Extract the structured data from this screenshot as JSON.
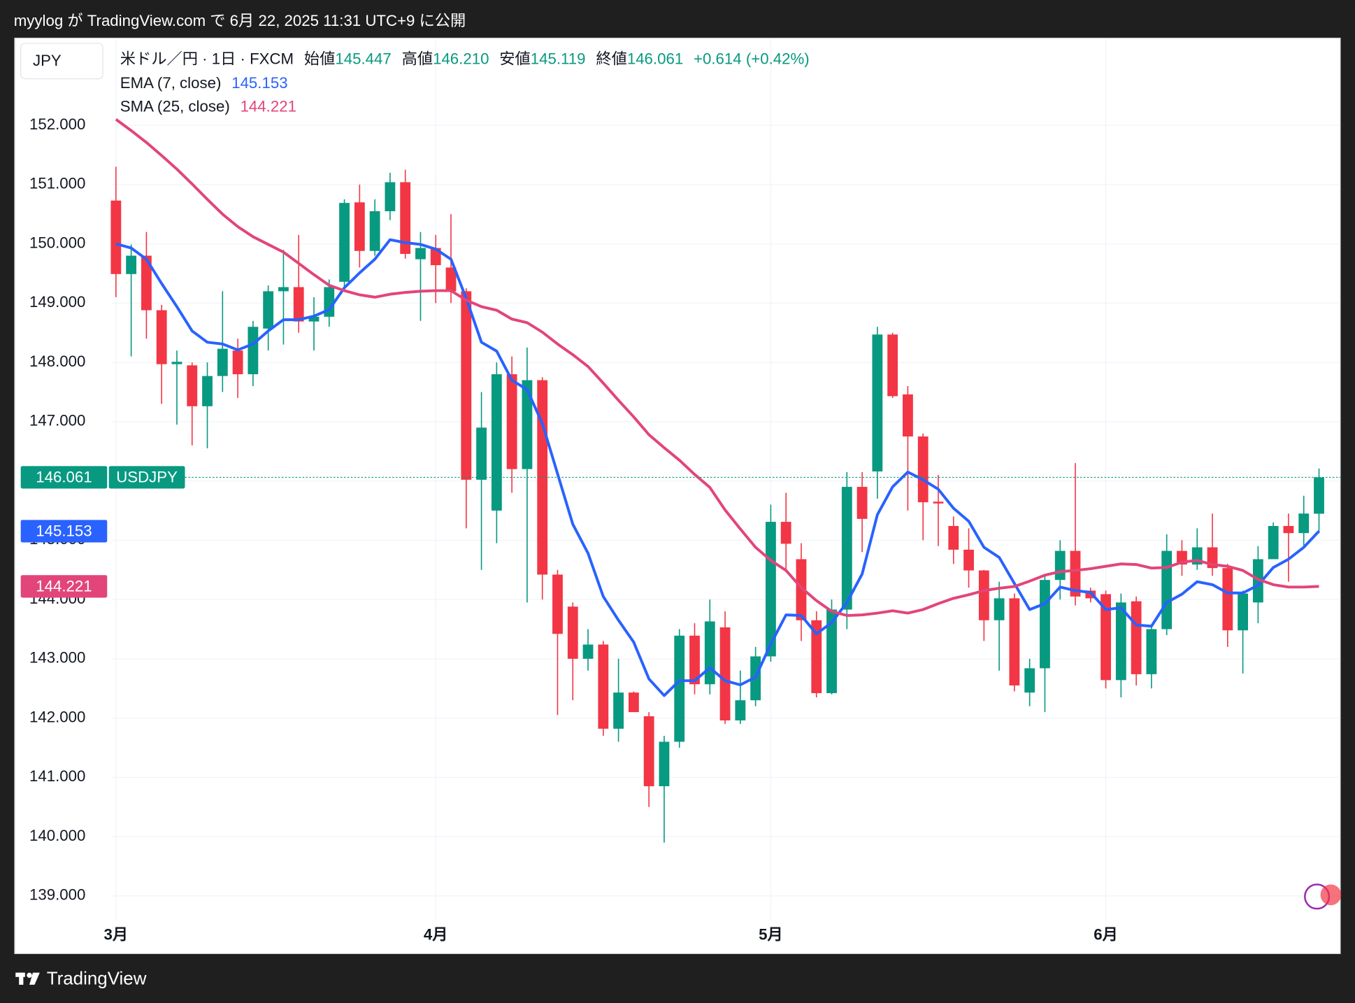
{
  "top_bar": {
    "text": "myylog が TradingView.com で 6月 22, 2025 11:31 UTC+9 に公開"
  },
  "footer": {
    "brand": "TradingView"
  },
  "chart_data": {
    "type": "candlestick",
    "currency": "JPY",
    "title": "米ドル／円 · 1日 · FXCM",
    "ohlc_legend": [
      {
        "label": "始値",
        "value": "145.447"
      },
      {
        "label": "高値",
        "value": "146.210"
      },
      {
        "label": "安値",
        "value": "145.119"
      },
      {
        "label": "終値",
        "value": "146.061"
      }
    ],
    "change": "+0.614 (+0.42%)",
    "symbol": "USDJPY",
    "last_price_label": "146.061",
    "up_color": "#089981",
    "down_color": "#f23645",
    "open": [
      150.73,
      149.49,
      149.8,
      148.88,
      147.97,
      147.95,
      147.26,
      147.77,
      148.2,
      147.8,
      148.57,
      149.2,
      149.27,
      148.69,
      148.77,
      149.36,
      150.7,
      149.88,
      150.55,
      151.04,
      149.74,
      149.93,
      149.6,
      149.2,
      146.02,
      145.5,
      147.8,
      146.2,
      147.7,
      144.42,
      143.88,
      143.0,
      143.24,
      141.82,
      142.43,
      142.03,
      140.85,
      141.6,
      143.39,
      142.57,
      143.53,
      141.96,
      142.3,
      143.04,
      145.31,
      144.68,
      143.65,
      142.42,
      143.83,
      145.9,
      146.16,
      148.47,
      147.46,
      146.75,
      145.65,
      145.24,
      144.84,
      144.49,
      143.65,
      144.02,
      142.43,
      142.84,
      144.33,
      144.82,
      144.15,
      144.09,
      142.64,
      143.97,
      142.74,
      143.5,
      144.82,
      144.59,
      144.88,
      144.53,
      143.48,
      143.95,
      144.68,
      145.24,
      145.12,
      145.447
    ],
    "high": [
      151.3,
      149.99,
      150.2,
      148.97,
      148.2,
      148.0,
      148.0,
      149.2,
      148.4,
      148.7,
      149.3,
      149.9,
      150.15,
      149.1,
      149.4,
      150.75,
      151.0,
      150.75,
      151.2,
      151.25,
      150.2,
      150.15,
      150.5,
      149.25,
      147.5,
      148.0,
      148.1,
      148.25,
      147.75,
      144.5,
      143.95,
      143.5,
      143.3,
      143.0,
      142.45,
      142.1,
      141.7,
      143.5,
      143.6,
      144.0,
      143.8,
      142.8,
      143.2,
      145.6,
      145.8,
      144.95,
      143.8,
      144.0,
      146.15,
      146.15,
      148.6,
      148.5,
      147.6,
      146.8,
      146.1,
      145.4,
      145.2,
      144.5,
      144.3,
      144.1,
      143.0,
      144.4,
      145.0,
      146.3,
      144.2,
      144.15,
      144.1,
      144.05,
      143.55,
      145.1,
      145.0,
      145.2,
      145.45,
      144.6,
      144.15,
      144.9,
      145.3,
      145.45,
      145.75,
      146.21
    ],
    "low": [
      149.1,
      148.1,
      148.4,
      147.3,
      146.95,
      146.6,
      146.55,
      147.5,
      147.4,
      147.6,
      148.2,
      148.3,
      148.5,
      148.2,
      148.6,
      149.2,
      149.6,
      149.8,
      150.4,
      149.75,
      148.7,
      149.0,
      149.0,
      145.2,
      144.5,
      144.95,
      145.8,
      143.95,
      144.0,
      142.05,
      142.3,
      142.8,
      141.7,
      141.6,
      142.1,
      140.5,
      139.9,
      141.5,
      142.4,
      142.4,
      141.9,
      141.9,
      142.2,
      142.95,
      144.5,
      143.3,
      142.35,
      142.4,
      143.5,
      144.8,
      145.7,
      147.4,
      145.5,
      145.0,
      144.9,
      144.6,
      144.2,
      143.3,
      142.8,
      142.45,
      142.2,
      142.1,
      144.0,
      143.9,
      143.95,
      142.5,
      142.35,
      142.55,
      142.5,
      143.4,
      144.4,
      144.5,
      144.4,
      143.2,
      142.75,
      143.6,
      144.7,
      144.3,
      144.9,
      145.119
    ],
    "close": [
      149.49,
      149.8,
      148.88,
      147.97,
      148.01,
      147.26,
      147.77,
      148.23,
      147.8,
      148.6,
      149.2,
      149.27,
      148.69,
      148.77,
      149.27,
      150.69,
      149.88,
      150.55,
      151.04,
      149.83,
      149.93,
      149.64,
      149.2,
      146.02,
      146.9,
      147.8,
      146.2,
      147.7,
      144.42,
      143.42,
      143.0,
      143.24,
      141.82,
      142.43,
      142.1,
      140.85,
      141.6,
      143.39,
      142.57,
      143.63,
      141.96,
      142.3,
      143.04,
      145.31,
      144.94,
      143.65,
      142.42,
      143.83,
      145.9,
      145.36,
      148.47,
      147.43,
      146.75,
      145.64,
      145.62,
      144.84,
      144.49,
      143.65,
      144.02,
      142.55,
      142.84,
      144.33,
      144.82,
      144.05,
      144.02,
      142.64,
      143.95,
      142.74,
      143.5,
      144.82,
      144.59,
      144.88,
      144.53,
      143.48,
      144.1,
      144.68,
      145.24,
      145.12,
      145.45,
      146.061
    ],
    "series": [
      {
        "name": "EMA (7, close)",
        "color": "#2962ff",
        "value_label": "145.153",
        "values": [
          150.0,
          149.93,
          149.74,
          149.33,
          148.94,
          148.53,
          148.34,
          148.31,
          148.21,
          148.31,
          148.53,
          148.72,
          148.72,
          148.78,
          148.89,
          149.26,
          149.51,
          149.74,
          150.07,
          150.02,
          149.99,
          149.91,
          149.74,
          149.08,
          148.34,
          148.19,
          147.7,
          147.54,
          146.97,
          146.12,
          145.27,
          144.78,
          144.05,
          143.65,
          143.28,
          142.66,
          142.38,
          142.63,
          142.63,
          142.85,
          142.63,
          142.56,
          142.69,
          143.25,
          143.74,
          143.73,
          143.42,
          143.61,
          143.95,
          144.43,
          145.43,
          145.9,
          146.15,
          146.02,
          145.86,
          145.54,
          145.32,
          144.88,
          144.71,
          144.27,
          143.83,
          143.93,
          144.21,
          144.15,
          144.12,
          143.83,
          143.86,
          143.57,
          143.55,
          143.95,
          144.09,
          144.3,
          144.25,
          144.11,
          144.11,
          144.24,
          144.54,
          144.68,
          144.88,
          145.153
        ]
      },
      {
        "name": "SMA (25, close)",
        "color": "#e2457a",
        "value_label": "144.221",
        "values": [
          152.1,
          151.91,
          151.71,
          151.49,
          151.26,
          151.01,
          150.75,
          150.5,
          150.29,
          150.12,
          149.99,
          149.86,
          149.67,
          149.48,
          149.3,
          149.21,
          149.14,
          149.1,
          149.15,
          149.18,
          149.2,
          149.21,
          149.21,
          149.05,
          148.94,
          148.88,
          148.73,
          148.67,
          148.51,
          148.31,
          148.13,
          147.93,
          147.65,
          147.36,
          147.08,
          146.78,
          146.56,
          146.35,
          146.11,
          145.89,
          145.51,
          145.19,
          144.88,
          144.66,
          144.49,
          144.2,
          143.98,
          143.8,
          143.73,
          143.74,
          143.77,
          143.81,
          143.77,
          143.83,
          143.93,
          144.02,
          144.08,
          144.15,
          144.19,
          144.22,
          144.31,
          144.41,
          144.47,
          144.49,
          144.52,
          144.56,
          144.6,
          144.59,
          144.53,
          144.54,
          144.63,
          144.66,
          144.59,
          144.56,
          144.49,
          144.34,
          144.25,
          144.21,
          144.21,
          144.221
        ]
      }
    ],
    "xlim": [
      -6.65,
      80.4
    ],
    "xticks": [
      {
        "value": 0,
        "label": "3月"
      },
      {
        "value": 21,
        "label": "4月"
      },
      {
        "value": 43,
        "label": "5月"
      },
      {
        "value": 65,
        "label": "6月"
      }
    ],
    "ylim": [
      138.58,
      153.47
    ],
    "yticks": [
      {
        "value": 139,
        "label": "139.000"
      },
      {
        "value": 140,
        "label": "140.000"
      },
      {
        "value": 141,
        "label": "141.000"
      },
      {
        "value": 142,
        "label": "142.000"
      },
      {
        "value": 143,
        "label": "143.000"
      },
      {
        "value": 144,
        "label": "144.000"
      },
      {
        "value": 145,
        "label": "145.000"
      },
      {
        "value": 146,
        "label": "146.000"
      },
      {
        "value": 147,
        "label": "147.000"
      },
      {
        "value": 148,
        "label": "148.000"
      },
      {
        "value": 149,
        "label": "149.000"
      },
      {
        "value": 150,
        "label": "150.000"
      },
      {
        "value": 151,
        "label": "151.000"
      },
      {
        "value": 152,
        "label": "152.000"
      }
    ],
    "grid": true
  }
}
